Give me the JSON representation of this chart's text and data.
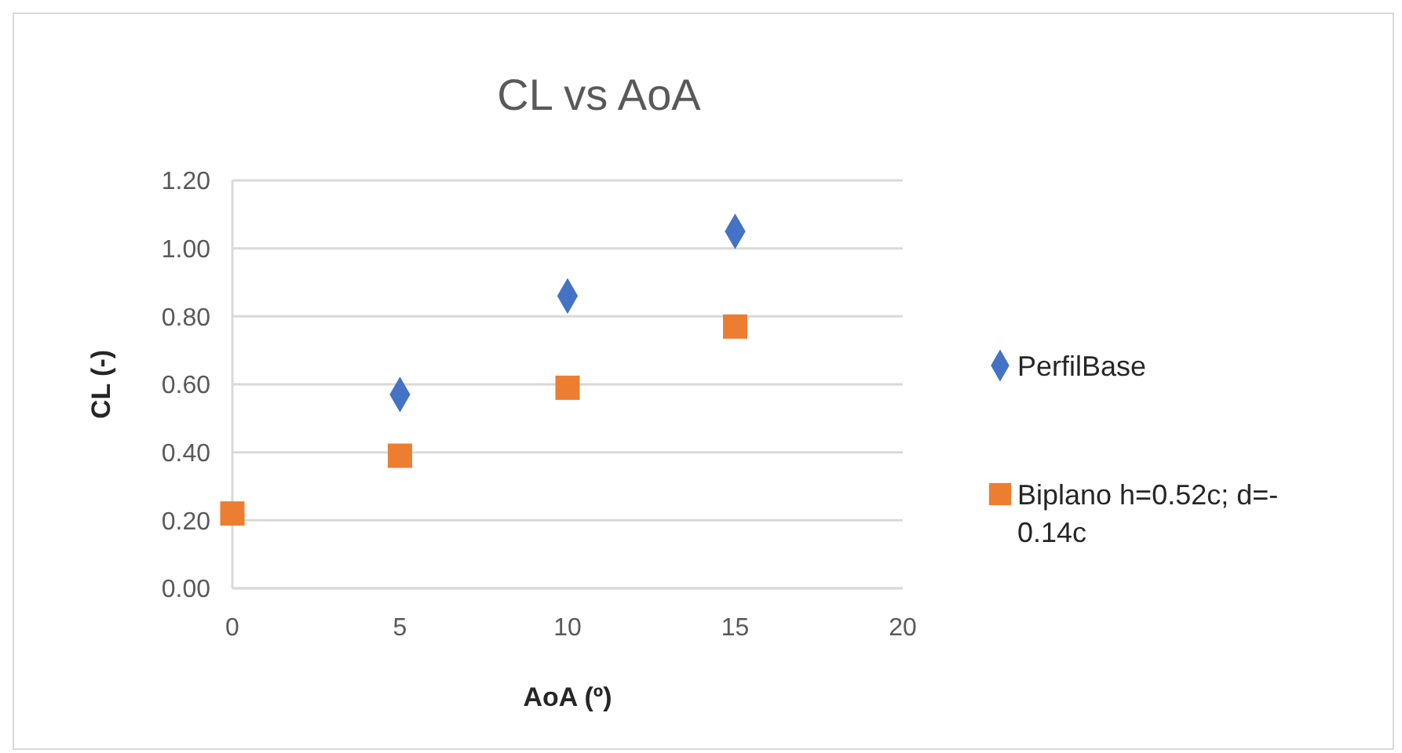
{
  "chart_data": {
    "type": "scatter",
    "title": "CL vs AoA",
    "xlabel": "AoA (º)",
    "ylabel": "CL (-)",
    "xlim": [
      0,
      20
    ],
    "xticks": [
      0,
      5,
      10,
      15,
      20
    ],
    "ylim": [
      0,
      1.2
    ],
    "yticks": [
      {
        "value": 0,
        "label": "0.00"
      },
      {
        "value": 0.2,
        "label": "0.20"
      },
      {
        "value": 0.4,
        "label": "0.40"
      },
      {
        "value": 0.6,
        "label": "0.60"
      },
      {
        "value": 0.8,
        "label": "0.80"
      },
      {
        "value": 1,
        "label": "1.00"
      },
      {
        "value": 1.2,
        "label": "1.20"
      }
    ],
    "grid": "y",
    "legend": "right",
    "x": [
      0,
      5,
      10,
      15
    ],
    "series": [
      {
        "name": "PerfilBase",
        "color": "#4472c4",
        "marker": "diamond",
        "values": [
          null,
          0.57,
          0.86,
          1.05
        ]
      },
      {
        "name": "Biplano h=0.52c; d=-0.14c",
        "color": "#ed7d31",
        "marker": "square",
        "values": [
          0.22,
          0.39,
          0.59,
          0.77
        ]
      }
    ]
  }
}
